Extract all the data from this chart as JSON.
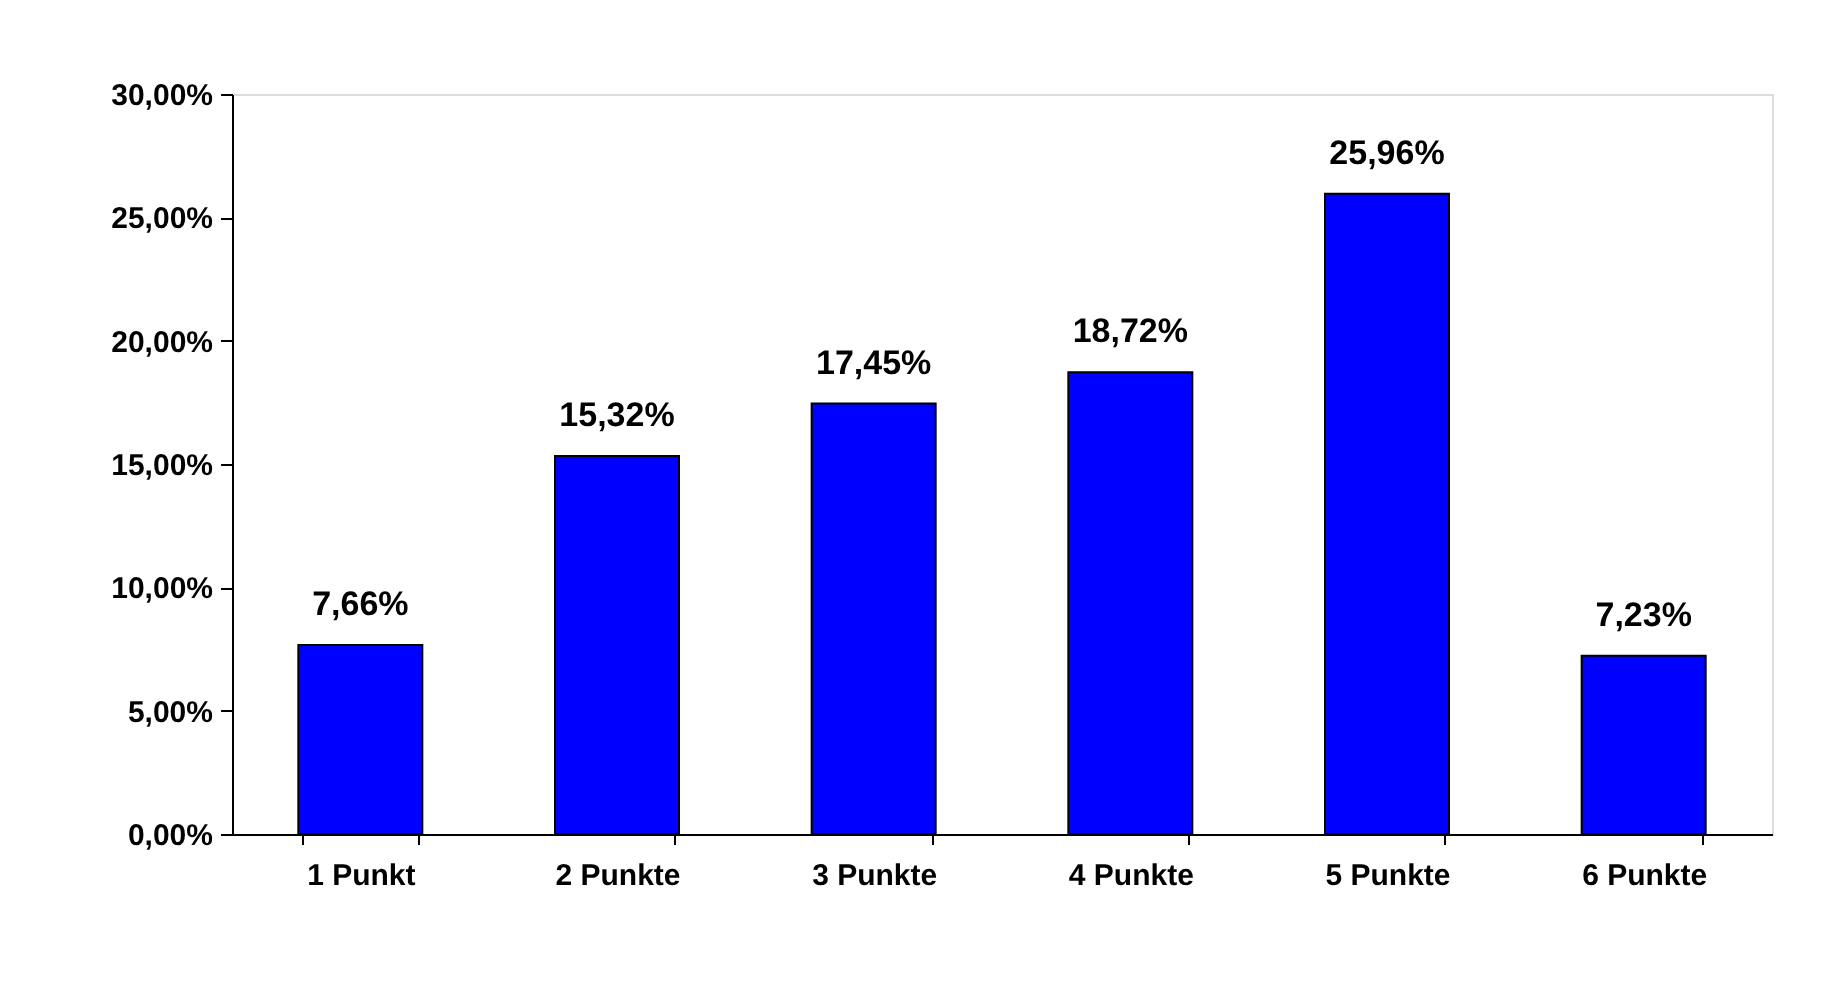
{
  "chart_data": {
    "type": "bar",
    "categories": [
      "1 Punkt",
      "2 Punkte",
      "3 Punkte",
      "4 Punkte",
      "5 Punkte",
      "6 Punkte"
    ],
    "values": [
      7.66,
      15.32,
      17.45,
      18.72,
      25.96,
      7.23
    ],
    "value_labels": [
      "7,66%",
      "15,32%",
      "17,45%",
      "18,72%",
      "25,96%",
      "7,23%"
    ],
    "color": "#0000ff",
    "ylim": [
      0,
      30
    ],
    "yticks": [
      {
        "value": 0,
        "label": "0,00%"
      },
      {
        "value": 5,
        "label": "5,00%"
      },
      {
        "value": 10,
        "label": "10,00%"
      },
      {
        "value": 15,
        "label": "15,00%"
      },
      {
        "value": 20,
        "label": "20,00%"
      },
      {
        "value": 25,
        "label": "25,00%"
      },
      {
        "value": 30,
        "label": "30,00%"
      }
    ],
    "grid": false
  }
}
